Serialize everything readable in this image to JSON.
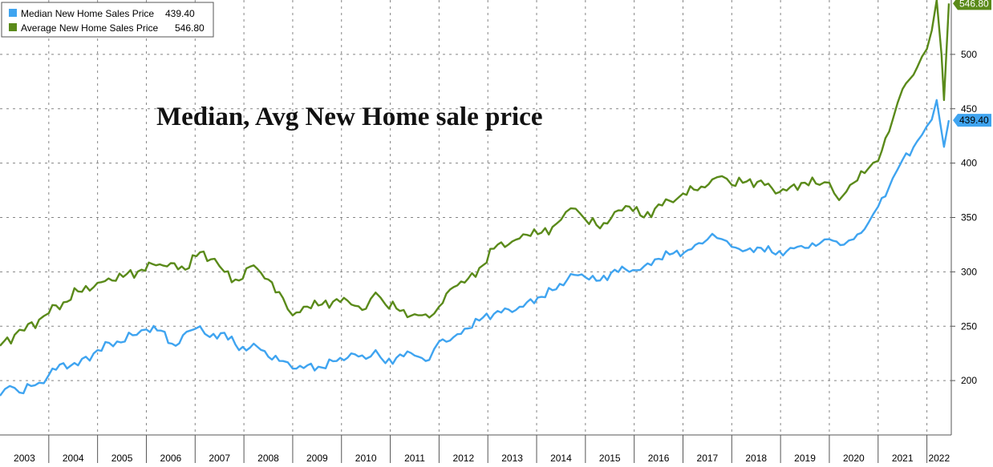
{
  "chart_data": {
    "type": "line",
    "title": "Median, Avg New Home sale price",
    "xlabel": "",
    "ylabel": "",
    "x_years": [
      "2003",
      "2004",
      "2005",
      "2006",
      "2007",
      "2008",
      "2009",
      "2010",
      "2011",
      "2012",
      "2013",
      "2014",
      "2015",
      "2016",
      "2017",
      "2018",
      "2019",
      "2020",
      "2021",
      "2022"
    ],
    "x_range": [
      2003.0,
      2022.5
    ],
    "y_ticks": [
      200,
      250,
      300,
      350,
      400,
      450,
      500
    ],
    "ylim": [
      150,
      550
    ],
    "grid": true,
    "legend_position": "top-left",
    "colors": {
      "median": "#3fa4f0",
      "average": "#5a8a1a",
      "end_label_text": "#000000"
    },
    "series": [
      {
        "key": "median",
        "name": "Median New Home Sales Price",
        "last_value": "439.40",
        "knots": [
          [
            2003.0,
            186
          ],
          [
            2003.2,
            195
          ],
          [
            2003.4,
            189
          ],
          [
            2003.8,
            198
          ],
          [
            2004.0,
            205
          ],
          [
            2004.3,
            216
          ],
          [
            2004.6,
            214
          ],
          [
            2005.0,
            228
          ],
          [
            2005.4,
            236
          ],
          [
            2005.8,
            242
          ],
          [
            2006.0,
            247
          ],
          [
            2006.3,
            246
          ],
          [
            2006.6,
            232
          ],
          [
            2006.9,
            246
          ],
          [
            2007.1,
            250
          ],
          [
            2007.3,
            240
          ],
          [
            2007.6,
            244
          ],
          [
            2007.9,
            228
          ],
          [
            2008.2,
            234
          ],
          [
            2008.5,
            222
          ],
          [
            2008.8,
            218
          ],
          [
            2009.0,
            211
          ],
          [
            2009.3,
            214
          ],
          [
            2009.6,
            212
          ],
          [
            2009.9,
            218
          ],
          [
            2010.2,
            225
          ],
          [
            2010.5,
            220
          ],
          [
            2010.7,
            228
          ],
          [
            2010.9,
            216
          ],
          [
            2011.2,
            224
          ],
          [
            2011.5,
            223
          ],
          [
            2011.8,
            219
          ],
          [
            2012.0,
            236
          ],
          [
            2012.3,
            240
          ],
          [
            2012.6,
            248
          ],
          [
            2012.9,
            258
          ],
          [
            2013.2,
            264
          ],
          [
            2013.5,
            263
          ],
          [
            2013.8,
            272
          ],
          [
            2014.1,
            277
          ],
          [
            2014.4,
            284
          ],
          [
            2014.7,
            298
          ],
          [
            2015.0,
            295
          ],
          [
            2015.3,
            292
          ],
          [
            2015.6,
            302
          ],
          [
            2015.9,
            300
          ],
          [
            2016.2,
            305
          ],
          [
            2016.5,
            312
          ],
          [
            2016.8,
            317
          ],
          [
            2017.1,
            320
          ],
          [
            2017.4,
            326
          ],
          [
            2017.6,
            335
          ],
          [
            2017.8,
            330
          ],
          [
            2018.0,
            323
          ],
          [
            2018.3,
            320
          ],
          [
            2018.6,
            322
          ],
          [
            2018.9,
            316
          ],
          [
            2019.2,
            322
          ],
          [
            2019.5,
            322
          ],
          [
            2019.8,
            326
          ],
          [
            2020.0,
            330
          ],
          [
            2020.3,
            325
          ],
          [
            2020.5,
            330
          ],
          [
            2020.8,
            345
          ],
          [
            2021.0,
            360
          ],
          [
            2021.3,
            386
          ],
          [
            2021.5,
            403
          ],
          [
            2021.8,
            420
          ],
          [
            2022.0,
            434
          ],
          [
            2022.1,
            440
          ],
          [
            2022.2,
            458
          ],
          [
            2022.35,
            415
          ],
          [
            2022.45,
            439.4
          ]
        ]
      },
      {
        "key": "average",
        "name": "Average New Home Sales Price",
        "last_value": "546.80",
        "knots": [
          [
            2003.0,
            232
          ],
          [
            2003.3,
            242
          ],
          [
            2003.5,
            246
          ],
          [
            2003.8,
            256
          ],
          [
            2004.0,
            262
          ],
          [
            2004.3,
            272
          ],
          [
            2004.6,
            282
          ],
          [
            2005.0,
            290
          ],
          [
            2005.3,
            292
          ],
          [
            2005.6,
            298
          ],
          [
            2005.9,
            302
          ],
          [
            2006.2,
            306
          ],
          [
            2006.5,
            308
          ],
          [
            2006.8,
            302
          ],
          [
            2007.1,
            318
          ],
          [
            2007.4,
            312
          ],
          [
            2007.6,
            300
          ],
          [
            2007.9,
            292
          ],
          [
            2008.2,
            306
          ],
          [
            2008.5,
            293
          ],
          [
            2008.8,
            276
          ],
          [
            2009.0,
            260
          ],
          [
            2009.3,
            268
          ],
          [
            2009.6,
            270
          ],
          [
            2009.9,
            275
          ],
          [
            2010.2,
            270
          ],
          [
            2010.5,
            266
          ],
          [
            2010.7,
            281
          ],
          [
            2010.9,
            270
          ],
          [
            2011.2,
            264
          ],
          [
            2011.5,
            261
          ],
          [
            2011.8,
            258
          ],
          [
            2012.0,
            268
          ],
          [
            2012.3,
            286
          ],
          [
            2012.6,
            294
          ],
          [
            2012.9,
            306
          ],
          [
            2013.2,
            325
          ],
          [
            2013.5,
            328
          ],
          [
            2013.8,
            334
          ],
          [
            2014.1,
            336
          ],
          [
            2014.4,
            344
          ],
          [
            2014.6,
            355
          ],
          [
            2014.8,
            358
          ],
          [
            2015.0,
            348
          ],
          [
            2015.3,
            340
          ],
          [
            2015.6,
            355
          ],
          [
            2015.9,
            360
          ],
          [
            2016.2,
            350
          ],
          [
            2016.5,
            362
          ],
          [
            2016.8,
            364
          ],
          [
            2017.0,
            372
          ],
          [
            2017.3,
            375
          ],
          [
            2017.6,
            385
          ],
          [
            2017.8,
            388
          ],
          [
            2018.0,
            380
          ],
          [
            2018.3,
            383
          ],
          [
            2018.6,
            384
          ],
          [
            2018.9,
            372
          ],
          [
            2019.2,
            378
          ],
          [
            2019.5,
            382
          ],
          [
            2019.8,
            380
          ],
          [
            2020.0,
            382
          ],
          [
            2020.2,
            366
          ],
          [
            2020.5,
            382
          ],
          [
            2020.8,
            395
          ],
          [
            2021.0,
            402
          ],
          [
            2021.3,
            440
          ],
          [
            2021.5,
            468
          ],
          [
            2021.8,
            488
          ],
          [
            2021.9,
            498
          ],
          [
            2022.0,
            505
          ],
          [
            2022.1,
            522
          ],
          [
            2022.2,
            550
          ],
          [
            2022.3,
            500
          ],
          [
            2022.35,
            458
          ],
          [
            2022.45,
            546.8
          ]
        ]
      }
    ]
  }
}
